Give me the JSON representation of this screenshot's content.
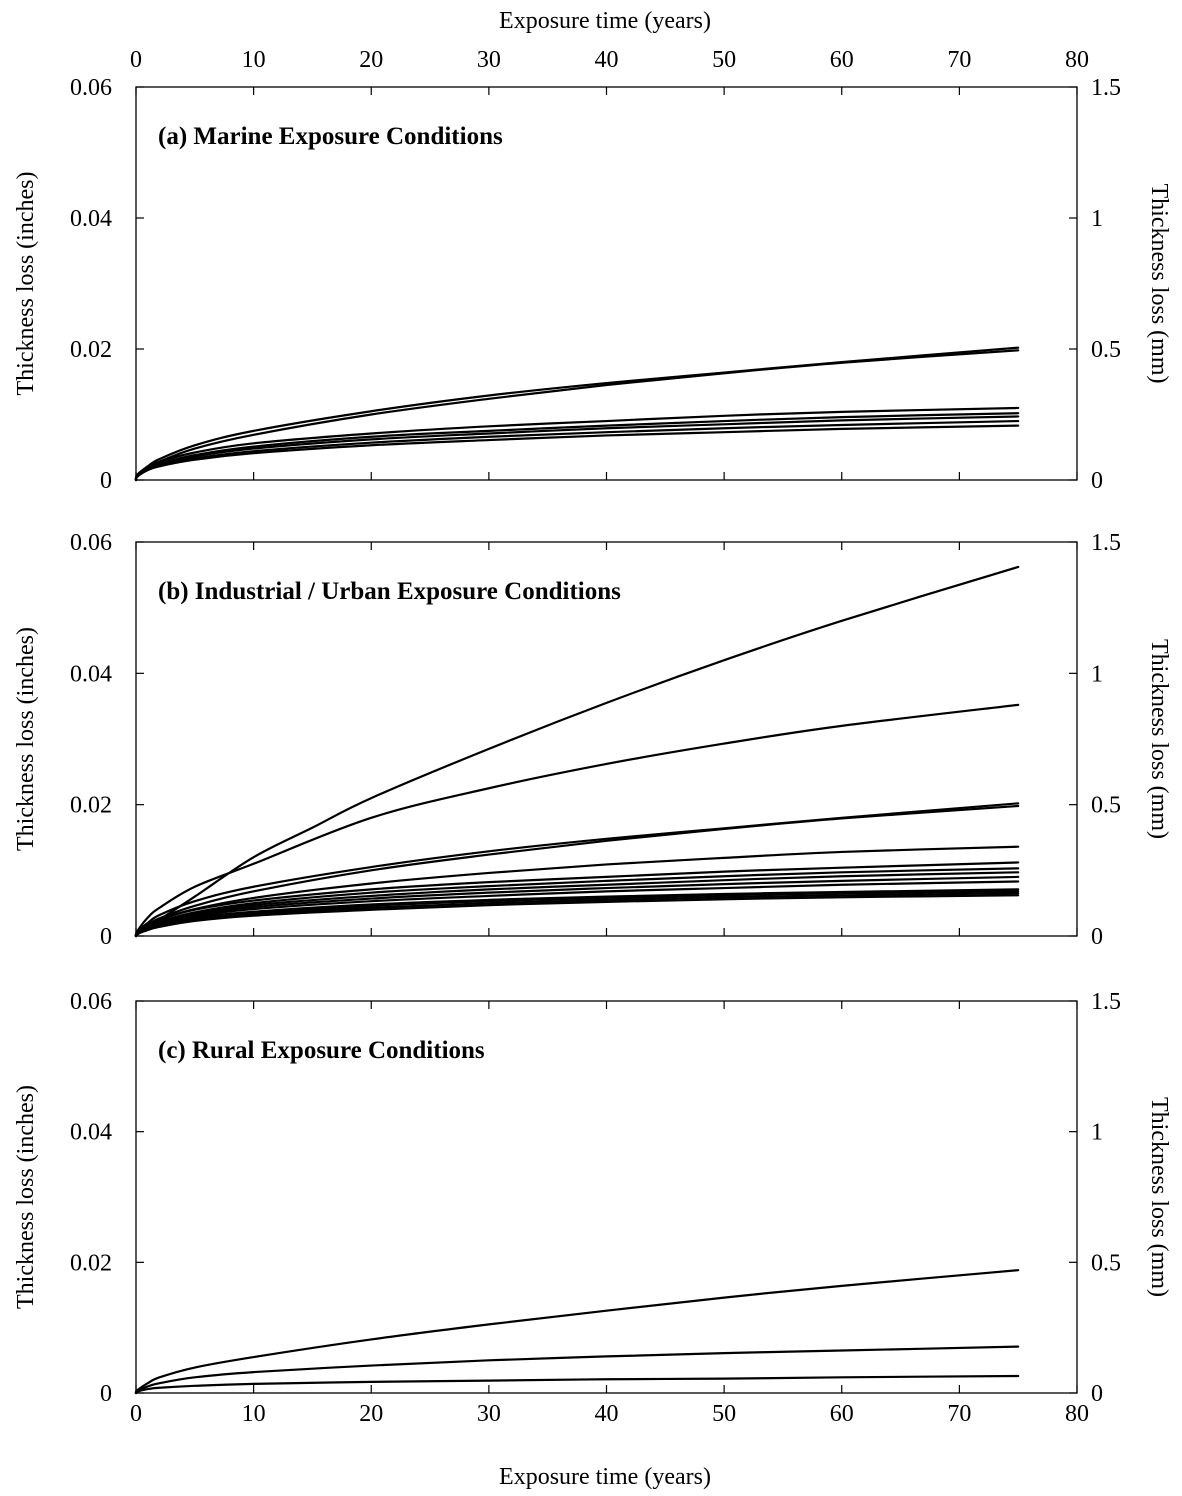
{
  "x_axis": {
    "title_top": "Exposure time (years)",
    "title_bottom": "Exposure time (years)"
  },
  "chart_data": [
    {
      "type": "line",
      "title": "(a) Marine Exposure Conditions",
      "xlabel": "Exposure time (years)",
      "ylabel": "Thickness loss (inches)",
      "y2label": "Thickness loss (mm)",
      "xlim": [
        0,
        80
      ],
      "ylim": [
        0,
        0.06
      ],
      "y2lim": [
        0,
        1.5
      ],
      "xticks": [
        "0",
        "10",
        "20",
        "30",
        "40",
        "50",
        "60",
        "70",
        "80"
      ],
      "yticks": [
        "0",
        "0.02",
        "0.04",
        "0.06"
      ],
      "y2ticks": [
        "0",
        "0.5",
        "1",
        "1.5"
      ],
      "grid": false,
      "series": [
        {
          "x": [
            0.1,
            1,
            2,
            5,
            10,
            20,
            30,
            40,
            50,
            60,
            75
          ],
          "y": [
            0.0008,
            0.0021,
            0.0032,
            0.0053,
            0.0075,
            0.0105,
            0.0129,
            0.0148,
            0.0164,
            0.018,
            0.0202
          ]
        },
        {
          "x": [
            0.1,
            1,
            2,
            5,
            10,
            20,
            30,
            40,
            50,
            60,
            75
          ],
          "y": [
            0.0006,
            0.0018,
            0.0028,
            0.0048,
            0.0069,
            0.01,
            0.0124,
            0.0145,
            0.0163,
            0.0179,
            0.0198
          ]
        },
        {
          "x": [
            0.1,
            1,
            2,
            5,
            10,
            20,
            30,
            40,
            50,
            60,
            75
          ],
          "y": [
            0.0007,
            0.002,
            0.0028,
            0.0042,
            0.0056,
            0.0071,
            0.0082,
            0.009,
            0.0098,
            0.0104,
            0.011
          ]
        },
        {
          "x": [
            0.1,
            1,
            2,
            5,
            10,
            20,
            30,
            40,
            50,
            60,
            75
          ],
          "y": [
            0.0006,
            0.0018,
            0.0025,
            0.0038,
            0.0051,
            0.0066,
            0.0075,
            0.0083,
            0.009,
            0.0096,
            0.0102
          ]
        },
        {
          "x": [
            0.1,
            1,
            2,
            5,
            10,
            20,
            30,
            40,
            50,
            60,
            75
          ],
          "y": [
            0.0006,
            0.0017,
            0.0024,
            0.0036,
            0.0048,
            0.0062,
            0.0071,
            0.0079,
            0.0085,
            0.0091,
            0.0097
          ]
        },
        {
          "x": [
            0.1,
            1,
            2,
            5,
            10,
            20,
            30,
            40,
            50,
            60,
            75
          ],
          "y": [
            0.0005,
            0.0016,
            0.0022,
            0.0033,
            0.0044,
            0.0057,
            0.0066,
            0.0073,
            0.0079,
            0.0084,
            0.009
          ]
        },
        {
          "x": [
            0.1,
            1,
            2,
            5,
            10,
            20,
            30,
            40,
            50,
            60,
            75
          ],
          "y": [
            0.0005,
            0.0015,
            0.0021,
            0.0031,
            0.0041,
            0.0053,
            0.0061,
            0.0068,
            0.0073,
            0.0078,
            0.0083
          ]
        }
      ]
    },
    {
      "type": "line",
      "title": "(b) Industrial / Urban Exposure Conditions",
      "xlabel": "Exposure time (years)",
      "ylabel": "Thickness loss (inches)",
      "y2label": "Thickness loss (mm)",
      "xlim": [
        0,
        80
      ],
      "ylim": [
        0,
        0.06
      ],
      "y2lim": [
        0,
        1.5
      ],
      "xticks": [
        "0",
        "10",
        "20",
        "30",
        "40",
        "50",
        "60",
        "70",
        "80"
      ],
      "yticks": [
        "0",
        "0.02",
        "0.04",
        "0.06"
      ],
      "y2ticks": [
        "0",
        "0.5",
        "1",
        "1.5"
      ],
      "grid": false,
      "series": [
        {
          "x": [
            0.1,
            1,
            2,
            5,
            10,
            15,
            20,
            30,
            40,
            50,
            60,
            75
          ],
          "y": [
            0.0002,
            0.0014,
            0.0025,
            0.006,
            0.012,
            0.0165,
            0.021,
            0.0285,
            0.0355,
            0.042,
            0.048,
            0.0562
          ]
        },
        {
          "x": [
            0.1,
            1,
            2,
            5,
            10,
            20,
            30,
            40,
            50,
            60,
            75
          ],
          "y": [
            0.0007,
            0.0028,
            0.0043,
            0.0075,
            0.011,
            0.018,
            0.0225,
            0.0262,
            0.0293,
            0.032,
            0.0352
          ]
        },
        {
          "x": [
            0.1,
            1,
            2,
            5,
            10,
            20,
            30,
            40,
            50,
            60,
            75
          ],
          "y": [
            0.0006,
            0.002,
            0.0032,
            0.0053,
            0.0075,
            0.0105,
            0.0129,
            0.0148,
            0.0164,
            0.018,
            0.0202
          ]
        },
        {
          "x": [
            0.1,
            1,
            2,
            5,
            10,
            20,
            30,
            40,
            50,
            60,
            75
          ],
          "y": [
            0.0005,
            0.0017,
            0.0027,
            0.0046,
            0.0068,
            0.01,
            0.0124,
            0.0145,
            0.0163,
            0.0179,
            0.0198
          ]
        },
        {
          "x": [
            0.1,
            1,
            2,
            5,
            10,
            20,
            30,
            40,
            50,
            60,
            75
          ],
          "y": [
            0.0005,
            0.0017,
            0.0025,
            0.0041,
            0.0058,
            0.008,
            0.0096,
            0.0109,
            0.0119,
            0.0128,
            0.0136
          ]
        },
        {
          "x": [
            0.1,
            1,
            2,
            5,
            10,
            20,
            30,
            40,
            50,
            60,
            75
          ],
          "y": [
            0.0005,
            0.0017,
            0.0025,
            0.004,
            0.0054,
            0.0071,
            0.0082,
            0.009,
            0.0098,
            0.0104,
            0.0112
          ]
        },
        {
          "x": [
            0.1,
            1,
            2,
            5,
            10,
            20,
            30,
            40,
            50,
            60,
            75
          ],
          "y": [
            0.0004,
            0.0015,
            0.0022,
            0.0036,
            0.005,
            0.0066,
            0.0076,
            0.0084,
            0.0091,
            0.0097,
            0.0103
          ]
        },
        {
          "x": [
            0.1,
            1,
            2,
            5,
            10,
            20,
            30,
            40,
            50,
            60,
            75
          ],
          "y": [
            0.0004,
            0.0014,
            0.0021,
            0.0034,
            0.0047,
            0.0061,
            0.0071,
            0.0078,
            0.0085,
            0.0091,
            0.0097
          ]
        },
        {
          "x": [
            0.1,
            1,
            2,
            5,
            10,
            20,
            30,
            40,
            50,
            60,
            75
          ],
          "y": [
            0.0004,
            0.0013,
            0.002,
            0.0032,
            0.0044,
            0.0057,
            0.0066,
            0.0073,
            0.0079,
            0.0084,
            0.009
          ]
        },
        {
          "x": [
            0.1,
            1,
            2,
            5,
            10,
            20,
            30,
            40,
            50,
            60,
            75
          ],
          "y": [
            0.0004,
            0.0013,
            0.0019,
            0.003,
            0.0041,
            0.0053,
            0.0061,
            0.0068,
            0.0073,
            0.0078,
            0.0083
          ]
        },
        {
          "x": [
            0.1,
            1,
            2,
            5,
            10,
            20,
            30,
            40,
            50,
            60,
            75
          ],
          "y": [
            0.0003,
            0.0012,
            0.0018,
            0.0028,
            0.0037,
            0.0048,
            0.0055,
            0.006,
            0.0064,
            0.0067,
            0.0071
          ]
        },
        {
          "x": [
            0.1,
            1,
            2,
            5,
            10,
            20,
            30,
            40,
            50,
            60,
            75
          ],
          "y": [
            0.0003,
            0.0011,
            0.0017,
            0.0027,
            0.0035,
            0.0046,
            0.0053,
            0.0058,
            0.0062,
            0.0065,
            0.0068
          ]
        },
        {
          "x": [
            0.1,
            1,
            2,
            5,
            10,
            20,
            30,
            40,
            50,
            60,
            75
          ],
          "y": [
            0.0003,
            0.001,
            0.0016,
            0.0025,
            0.0033,
            0.0043,
            0.005,
            0.0055,
            0.0059,
            0.0062,
            0.0065
          ]
        },
        {
          "x": [
            0.1,
            1,
            2,
            5,
            10,
            20,
            30,
            40,
            50,
            60,
            75
          ],
          "y": [
            0.0003,
            0.0009,
            0.0014,
            0.0023,
            0.0031,
            0.004,
            0.0047,
            0.0052,
            0.0056,
            0.0059,
            0.0062
          ]
        }
      ]
    },
    {
      "type": "line",
      "title": "(c) Rural Exposure Conditions",
      "xlabel": "Exposure time (years)",
      "ylabel": "Thickness loss (inches)",
      "y2label": "Thickness loss (mm)",
      "xlim": [
        0,
        80
      ],
      "ylim": [
        0,
        0.06
      ],
      "y2lim": [
        0,
        1.5
      ],
      "xticks": [
        "0",
        "10",
        "20",
        "30",
        "40",
        "50",
        "60",
        "70",
        "80"
      ],
      "yticks": [
        "0",
        "0.02",
        "0.04",
        "0.06"
      ],
      "y2ticks": [
        "0",
        "0.5",
        "1",
        "1.5"
      ],
      "grid": false,
      "series": [
        {
          "x": [
            0.1,
            1,
            2,
            5,
            10,
            20,
            30,
            40,
            50,
            60,
            75
          ],
          "y": [
            0.0004,
            0.0015,
            0.0024,
            0.0039,
            0.0055,
            0.0082,
            0.0105,
            0.0126,
            0.0146,
            0.0164,
            0.0188
          ]
        },
        {
          "x": [
            0.1,
            1,
            2,
            5,
            10,
            20,
            30,
            40,
            50,
            60,
            75
          ],
          "y": [
            0.0003,
            0.001,
            0.0015,
            0.0024,
            0.0032,
            0.0042,
            0.005,
            0.0056,
            0.0061,
            0.0065,
            0.0071
          ]
        },
        {
          "x": [
            0.1,
            1,
            2,
            5,
            10,
            20,
            30,
            40,
            50,
            60,
            75
          ],
          "y": [
            0.0002,
            0.0006,
            0.0008,
            0.0011,
            0.0014,
            0.0017,
            0.0019,
            0.0021,
            0.0022,
            0.0024,
            0.0026
          ]
        }
      ]
    }
  ]
}
